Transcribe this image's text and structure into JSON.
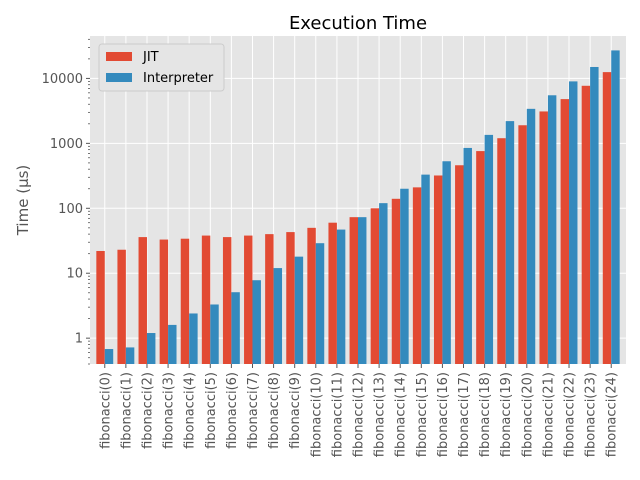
{
  "chart_data": {
    "type": "bar",
    "title": "Execution Time",
    "xlabel": "",
    "ylabel": "Time (µs)",
    "yscale": "log",
    "ylim": [
      0.4,
      45000
    ],
    "yticks": [
      1,
      10,
      100,
      1000,
      10000
    ],
    "ytick_labels": [
      "1",
      "10",
      "100",
      "1000",
      "10000"
    ],
    "grid": true,
    "legend_position": "top-left",
    "categories": [
      "fibonacci(0)",
      "fibonacci(1)",
      "fibonacci(2)",
      "fibonacci(3)",
      "fibonacci(4)",
      "fibonacci(5)",
      "fibonacci(6)",
      "fibonacci(7)",
      "fibonacci(8)",
      "fibonacci(9)",
      "fibonacci(10)",
      "fibonacci(11)",
      "fibonacci(12)",
      "fibonacci(13)",
      "fibonacci(14)",
      "fibonacci(15)",
      "fibonacci(16)",
      "fibonacci(17)",
      "fibonacci(18)",
      "fibonacci(19)",
      "fibonacci(20)",
      "fibonacci(21)",
      "fibonacci(22)",
      "fibonacci(23)",
      "fibonacci(24)"
    ],
    "series": [
      {
        "name": "JIT",
        "color": "#E24A33",
        "values": [
          22,
          23,
          36,
          33,
          34,
          38,
          36,
          38,
          40,
          43,
          50,
          60,
          73,
          100,
          140,
          210,
          320,
          460,
          760,
          1200,
          1900,
          3100,
          4800,
          7700,
          12500
        ]
      },
      {
        "name": "Interpreter",
        "color": "#348ABD",
        "values": [
          0.68,
          0.72,
          1.2,
          1.6,
          2.4,
          3.3,
          5.1,
          7.8,
          12,
          18,
          29,
          47,
          73,
          120,
          200,
          330,
          530,
          850,
          1350,
          2200,
          3400,
          5500,
          9000,
          15000,
          27000
        ]
      }
    ]
  }
}
